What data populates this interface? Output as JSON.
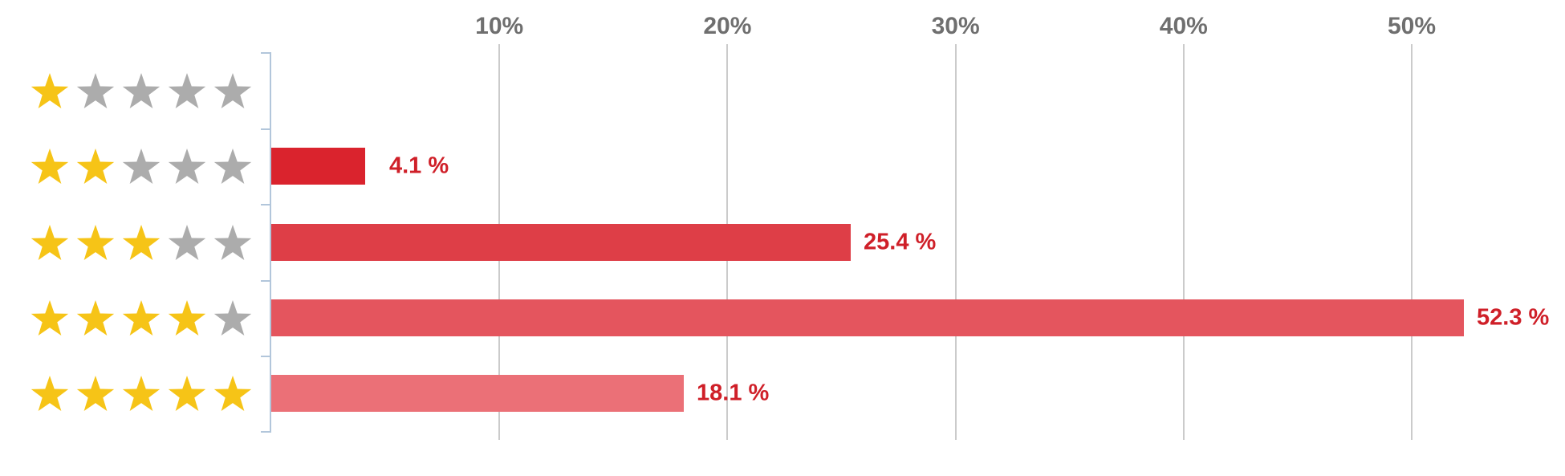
{
  "chart_data": {
    "type": "bar",
    "orientation": "horizontal",
    "title": "",
    "xlabel": "",
    "ylabel": "",
    "x_axis": {
      "unit": "%",
      "ticks": [
        10,
        20,
        30,
        40,
        50
      ],
      "tick_labels": [
        "10%",
        "20%",
        "30%",
        "40%",
        "50%"
      ],
      "range": [
        0,
        56.7
      ],
      "grid": true,
      "tick_position": "top"
    },
    "categories": [
      "1 star",
      "2 stars",
      "3 stars",
      "4 stars",
      "5 stars"
    ],
    "rows": [
      {
        "stars": 1,
        "stars_total": 5,
        "value": 0,
        "label": "",
        "bar_color": ""
      },
      {
        "stars": 2,
        "stars_total": 5,
        "value": 4.1,
        "label": "4.1 %",
        "bar_color": "#da232d"
      },
      {
        "stars": 3,
        "stars_total": 5,
        "value": 25.4,
        "label": "25.4 %",
        "bar_color": "#de3e47"
      },
      {
        "stars": 4,
        "stars_total": 5,
        "value": 52.3,
        "label": "52.3 %",
        "bar_color": "#e4555e"
      },
      {
        "stars": 5,
        "stars_total": 5,
        "value": 18.1,
        "label": "18.1 %",
        "bar_color": "#eb7077"
      }
    ],
    "legend": null
  },
  "colors": {
    "star_filled": "#f6c417",
    "star_empty": "#acacac",
    "value_label": "#cf1f28",
    "gridline": "#cbcbcb",
    "axis_line": "#b2c6db",
    "tick_label": "#6f6f6f",
    "background": "#ffffff"
  }
}
